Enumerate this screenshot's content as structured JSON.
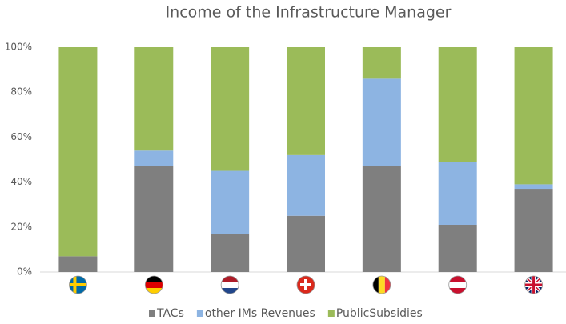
{
  "chart_data": {
    "type": "stacked_bar",
    "title": "Income of the Infrastructure Manager",
    "categories": [
      null,
      null,
      null,
      null,
      null,
      null,
      null
    ],
    "series": [
      {
        "name": "TACs",
        "color": "#7f7f7f",
        "values": [
          7,
          47,
          17,
          25,
          47,
          21,
          37
        ]
      },
      {
        "name": "other IMs Revenues",
        "color": "#8db4e2",
        "values": [
          0,
          7,
          28,
          27,
          39,
          28,
          2
        ]
      },
      {
        "name": "PublicSubsidies",
        "color": "#9bbb59",
        "values": [
          93,
          46,
          55,
          48,
          14,
          51,
          61
        ]
      }
    ],
    "ylim": [
      0,
      100
    ],
    "yticks": [
      {
        "value": 0,
        "label": "0%"
      },
      {
        "value": 20,
        "label": "20%"
      },
      {
        "value": 40,
        "label": "40%"
      },
      {
        "value": 60,
        "label": "60%"
      },
      {
        "value": 80,
        "label": "80%"
      },
      {
        "value": 100,
        "label": "100%"
      }
    ],
    "grid": true,
    "legend": "bottom"
  }
}
